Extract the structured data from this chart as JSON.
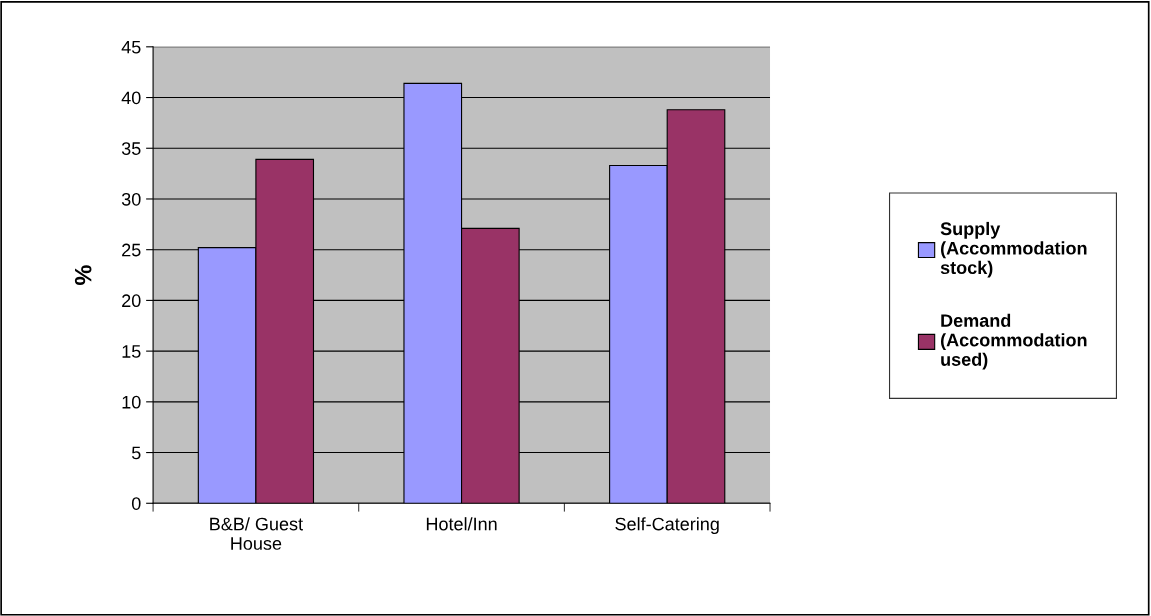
{
  "chart_data": {
    "type": "bar",
    "ylabel": "%",
    "categories": [
      "B&B/ Guest\nHouse",
      "Hotel/Inn",
      "Self-Catering"
    ],
    "series": [
      {
        "name": "Supply\n(Accommodation\nstock)",
        "color": "#9999ff",
        "values": [
          25.2,
          41.4,
          33.3
        ]
      },
      {
        "name": "Demand\n(Accommodation\nused)",
        "color": "#993366",
        "values": [
          33.9,
          27.1,
          38.8
        ]
      }
    ],
    "ylim": [
      0,
      45
    ],
    "yticks": [
      0,
      5,
      10,
      15,
      20,
      25,
      30,
      35,
      40,
      45
    ],
    "grid": "y",
    "legend": "right"
  }
}
